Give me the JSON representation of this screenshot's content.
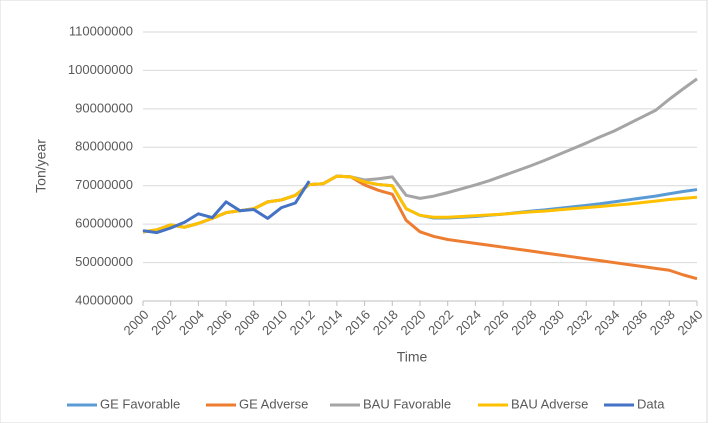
{
  "chart_data": {
    "type": "line",
    "x": [
      2000,
      2001,
      2002,
      2003,
      2004,
      2005,
      2006,
      2007,
      2008,
      2009,
      2010,
      2011,
      2012,
      2013,
      2014,
      2015,
      2016,
      2017,
      2018,
      2019,
      2020,
      2021,
      2022,
      2023,
      2024,
      2025,
      2026,
      2027,
      2028,
      2029,
      2030,
      2031,
      2032,
      2033,
      2034,
      2035,
      2036,
      2037,
      2038,
      2039,
      2040
    ],
    "xlim": [
      2000,
      2040
    ],
    "xticks": [
      2000,
      2002,
      2004,
      2006,
      2008,
      2010,
      2012,
      2014,
      2016,
      2018,
      2020,
      2022,
      2024,
      2026,
      2028,
      2030,
      2032,
      2034,
      2036,
      2038,
      2040
    ],
    "ylim": [
      40000000,
      110000000
    ],
    "yticks": [
      40000000,
      50000000,
      60000000,
      70000000,
      80000000,
      90000000,
      100000000,
      110000000
    ],
    "xlabel": "Time",
    "ylabel": "Ton/year",
    "grid": true,
    "legend": "bottom",
    "series": [
      {
        "name": "GE Favorable",
        "color": "#5b9bd5",
        "values": [
          58000000,
          58500000,
          59800000,
          59200000,
          60200000,
          61500000,
          63000000,
          63500000,
          64000000,
          65800000,
          66300000,
          67500000,
          70300000,
          70500000,
          72500000,
          72300000,
          71000000,
          70300000,
          70000000,
          64000000,
          62300000,
          61600000,
          61600000,
          61800000,
          62000000,
          62300000,
          62600000,
          63000000,
          63400000,
          63700000,
          64100000,
          64500000,
          64900000,
          65300000,
          65800000,
          66300000,
          66800000,
          67300000,
          67900000,
          68500000,
          69000000
        ]
      },
      {
        "name": "GE Adverse",
        "color": "#ed7d31",
        "values": [
          58000000,
          58500000,
          59800000,
          59200000,
          60200000,
          61500000,
          63000000,
          63500000,
          64000000,
          65800000,
          66300000,
          67500000,
          70300000,
          70500000,
          72500000,
          72300000,
          70200000,
          68800000,
          67800000,
          61000000,
          58000000,
          56800000,
          56000000,
          55500000,
          55000000,
          54500000,
          54000000,
          53500000,
          53000000,
          52500000,
          52000000,
          51500000,
          51000000,
          50500000,
          50000000,
          49500000,
          49000000,
          48500000,
          48000000,
          46800000,
          45800000
        ]
      },
      {
        "name": "BAU Favorable",
        "color": "#a5a5a5",
        "values": [
          58000000,
          58500000,
          59800000,
          59200000,
          60200000,
          61500000,
          63000000,
          63500000,
          64000000,
          65800000,
          66300000,
          67500000,
          70300000,
          70500000,
          72500000,
          72300000,
          71500000,
          71800000,
          72300000,
          67500000,
          66700000,
          67300000,
          68200000,
          69200000,
          70200000,
          71300000,
          72600000,
          73900000,
          75200000,
          76600000,
          78100000,
          79600000,
          81100000,
          82700000,
          84200000,
          86000000,
          87800000,
          89600000,
          92500000,
          95200000,
          97800000
        ]
      },
      {
        "name": "BAU Adverse",
        "color": "#ffc000",
        "values": [
          58000000,
          58500000,
          59800000,
          59200000,
          60200000,
          61500000,
          63000000,
          63500000,
          64000000,
          65800000,
          66300000,
          67500000,
          70300000,
          70500000,
          72500000,
          72300000,
          71000000,
          70300000,
          70000000,
          64000000,
          62300000,
          61800000,
          61800000,
          62000000,
          62200000,
          62400000,
          62600000,
          62900000,
          63200000,
          63400000,
          63700000,
          64000000,
          64300000,
          64600000,
          64900000,
          65200000,
          65600000,
          66000000,
          66400000,
          66700000,
          67000000
        ]
      },
      {
        "name": "Data",
        "color": "#4472c4",
        "values": [
          58300000,
          57800000,
          59000000,
          60500000,
          62700000,
          61700000,
          65800000,
          63500000,
          63800000,
          61500000,
          64300000,
          65500000,
          71200000,
          null,
          null,
          null,
          null,
          null,
          null,
          null,
          null,
          null,
          null,
          null,
          null,
          null,
          null,
          null,
          null,
          null,
          null,
          null,
          null,
          null,
          null,
          null,
          null,
          null,
          null,
          null,
          null
        ]
      }
    ]
  }
}
